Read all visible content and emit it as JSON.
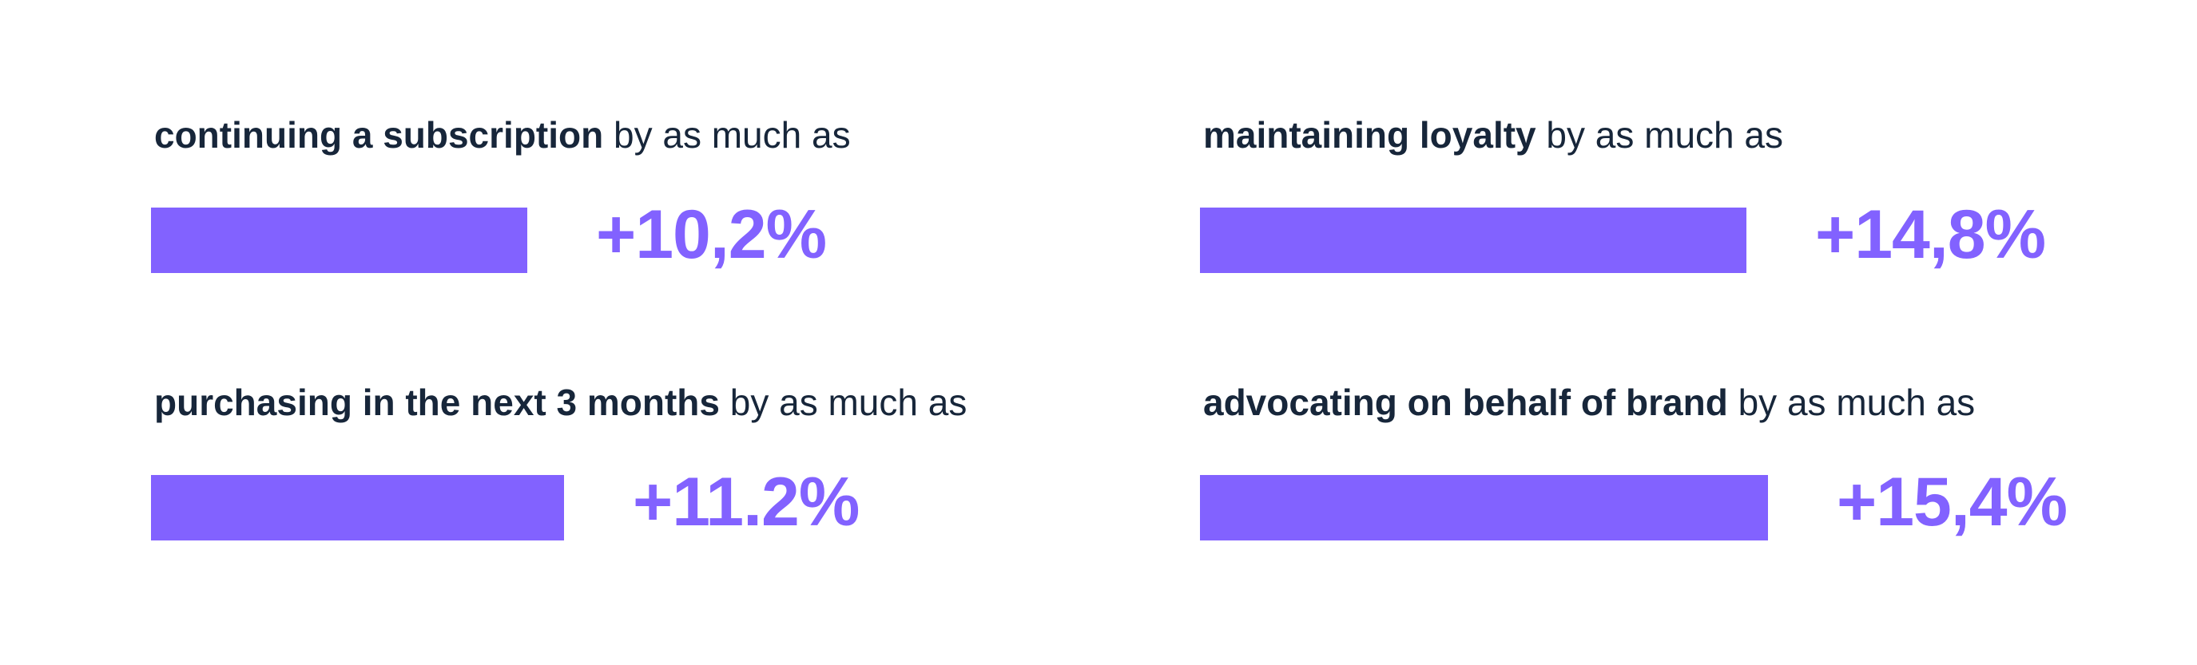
{
  "chart_data": {
    "type": "bar",
    "orientation": "horizontal",
    "unit": "%",
    "colors": {
      "bar": "#8262ff",
      "value_text": "#8262ff",
      "caption_text": "#17263a"
    },
    "series": [
      {
        "values": [
          10.2,
          14.8,
          11.2,
          15.4
        ]
      }
    ],
    "items": [
      {
        "label_strong": "continuing a subscription",
        "label_rest": " by as much as",
        "value": 10.2,
        "value_label": "+10,2%"
      },
      {
        "label_strong": "maintaining loyalty",
        "label_rest": " by as much as",
        "value": 14.8,
        "value_label": "+14,8%"
      },
      {
        "label_strong": "purchasing in the next 3 months",
        "label_rest": " by as much as",
        "value": 11.2,
        "value_label": "+11.2%"
      },
      {
        "label_strong": "advocating on behalf of brand",
        "label_rest": " by as much as",
        "value": 15.4,
        "value_label": "+15,4%"
      }
    ]
  }
}
